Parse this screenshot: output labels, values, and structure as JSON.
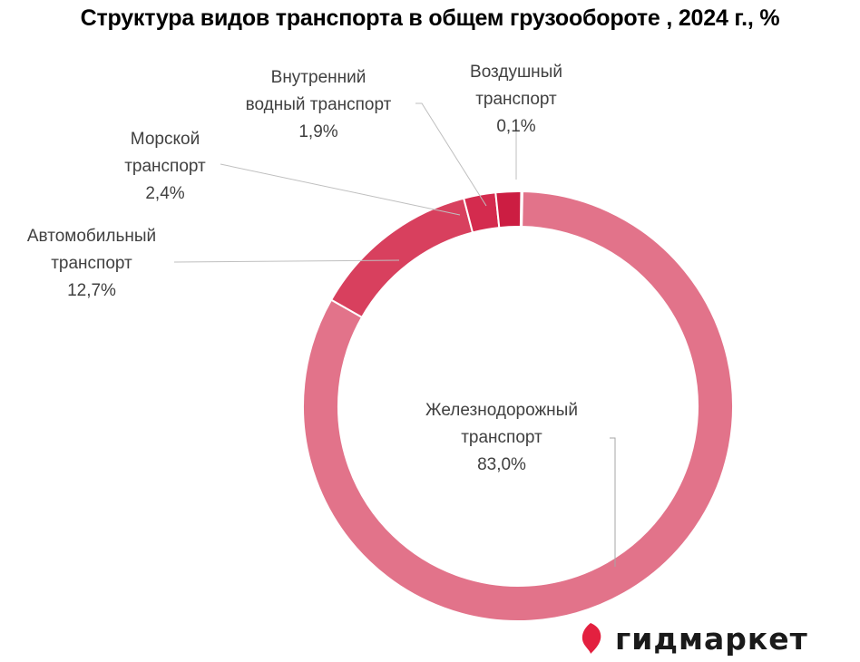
{
  "chart_data": {
    "type": "pie",
    "title": "Структура видов транспорта в общем грузообороте , 2024 г., %",
    "slices": [
      {
        "name_lines": [
          "Воздушный",
          "транспорт"
        ],
        "value": 0.1,
        "value_label": "0,1%",
        "color": "#b5002a"
      },
      {
        "name_lines": [
          "Железнодорожный",
          "транспорт"
        ],
        "value": 83.0,
        "value_label": "83,0%",
        "color": "#e2738a"
      },
      {
        "name_lines": [
          "Автомобильный",
          "транспорт"
        ],
        "value": 12.7,
        "value_label": "12,7%",
        "color": "#d8405e"
      },
      {
        "name_lines": [
          "Морской",
          "транспорт"
        ],
        "value": 2.4,
        "value_label": "2,4%",
        "color": "#d42b4e"
      },
      {
        "name_lines": [
          "Внутренний",
          "водный транспорт"
        ],
        "value": 1.9,
        "value_label": "1,9%",
        "color": "#cc1d42"
      }
    ]
  },
  "brand": {
    "name": "гидмаркет",
    "icon": "gidmarket-logo-icon",
    "color": "#e3203f"
  }
}
